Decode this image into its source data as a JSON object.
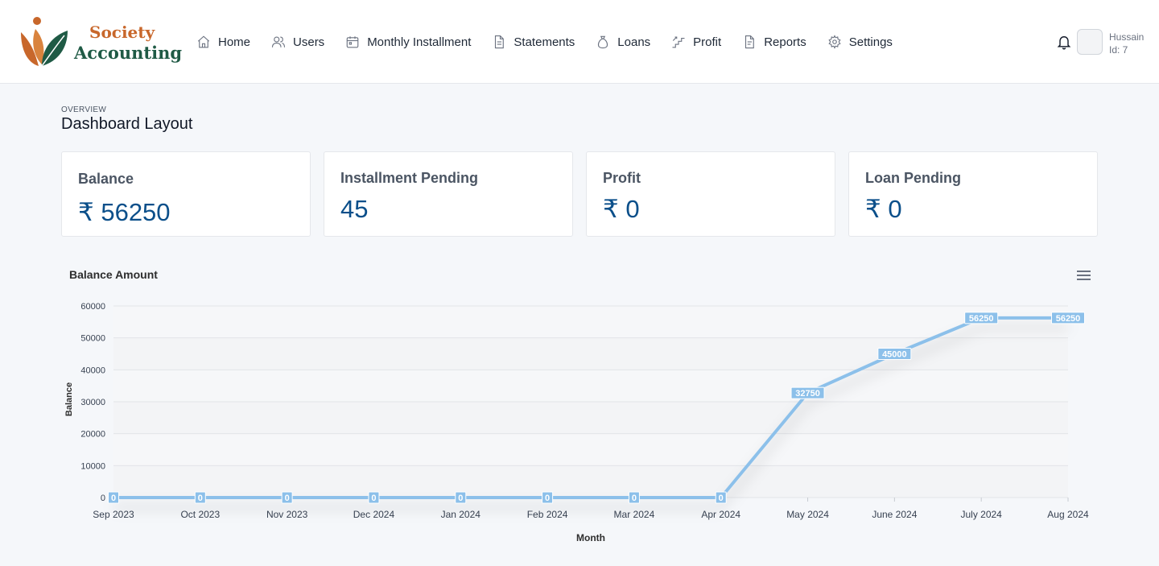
{
  "app": {
    "logo_line1": "Society",
    "logo_line2": "Accounting"
  },
  "nav": {
    "items": [
      {
        "label": "Home",
        "icon": "home-icon"
      },
      {
        "label": "Users",
        "icon": "users-icon"
      },
      {
        "label": "Monthly Installment",
        "icon": "calendar-icon"
      },
      {
        "label": "Statements",
        "icon": "document-icon"
      },
      {
        "label": "Loans",
        "icon": "money-bag-icon"
      },
      {
        "label": "Profit",
        "icon": "stairs-icon"
      },
      {
        "label": "Reports",
        "icon": "report-icon"
      },
      {
        "label": "Settings",
        "icon": "gear-icon"
      }
    ]
  },
  "user": {
    "name": "Hussain",
    "id_text": "Id: 7"
  },
  "page": {
    "eyebrow": "OVERVIEW",
    "title": "Dashboard Layout"
  },
  "cards": [
    {
      "label": "Balance",
      "value": "₹ 56250"
    },
    {
      "label": "Installment Pending",
      "value": "45"
    },
    {
      "label": "Profit",
      "value": "₹ 0"
    },
    {
      "label": "Loan Pending",
      "value": "₹ 0"
    }
  ],
  "colors": {
    "accent": "#0b4f8a",
    "line": "#8cc0ea",
    "logo_orange": "#c8672b",
    "logo_green": "#1f5a45"
  },
  "chart_data": {
    "type": "line",
    "title": "Balance Amount",
    "xlabel": "Month",
    "ylabel": "Balance",
    "categories": [
      "Sep 2023",
      "Oct 2023",
      "Nov 2023",
      "Dec 2024",
      "Jan 2024",
      "Feb 2024",
      "Mar 2024",
      "Apr 2024",
      "May 2024",
      "June 2024",
      "July 2024",
      "Aug 2024"
    ],
    "series": [
      {
        "values": [
          0,
          0,
          0,
          0,
          0,
          0,
          0,
          0,
          32750,
          45000,
          56250,
          56250
        ]
      }
    ],
    "ylim": [
      0,
      60000
    ],
    "yticks": [
      0,
      10000,
      20000,
      30000,
      40000,
      50000,
      60000
    ],
    "grid": true,
    "data_labels": true,
    "legend": "none"
  }
}
